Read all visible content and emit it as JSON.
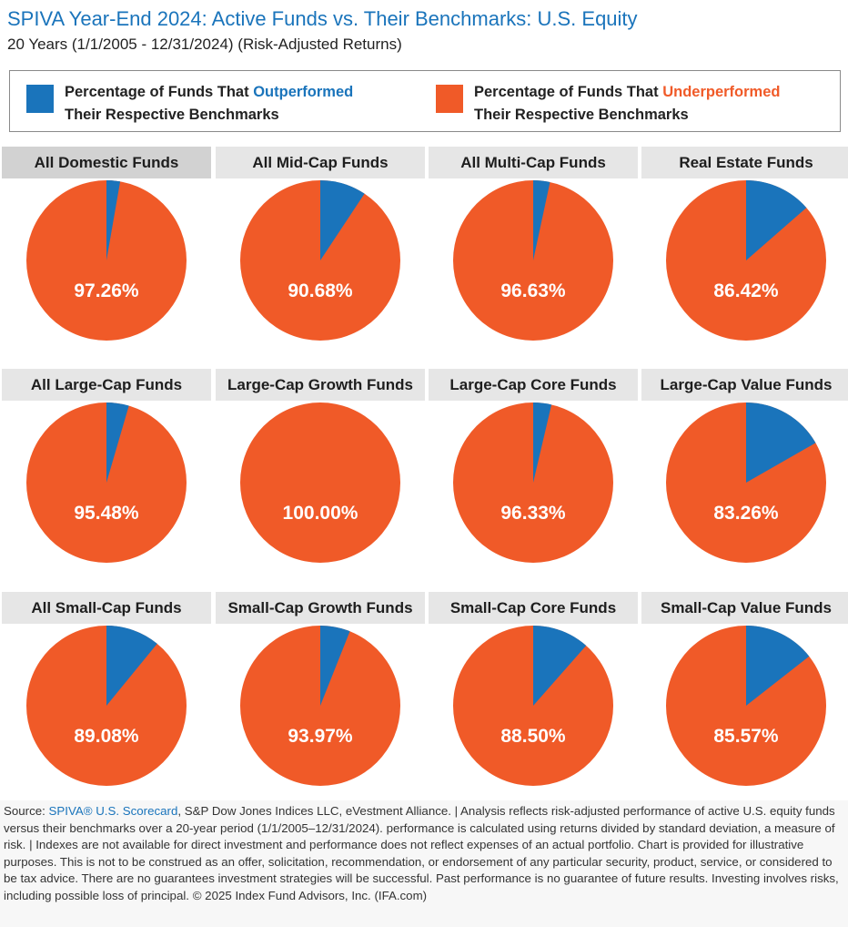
{
  "header": {
    "title": "SPIVA Year-End 2024: Active Funds vs. Their Benchmarks: U.S. Equity",
    "subtitle": "20 Years (1/1/2005 - 12/31/2024) (Risk-Adjusted Returns)"
  },
  "legend": {
    "outperformed": {
      "prefix": "Percentage of Funds That ",
      "highlight": "Outperformed",
      "line2": "Their Respective Benchmarks",
      "color": "#1a74bb"
    },
    "underperformed": {
      "prefix": "Percentage of Funds That ",
      "highlight": "Underperformed",
      "line2": "Their Respective Benchmarks",
      "color": "#f05a28"
    }
  },
  "chart_data": {
    "type": "pie",
    "series_names": [
      "Percentage of Funds That Outperformed Their Respective Benchmarks",
      "Percentage of Funds That Underperformed Their Respective Benchmarks"
    ],
    "colors": [
      "#1a74bb",
      "#f05a28"
    ],
    "panels": [
      {
        "title": "All Domestic Funds",
        "underperformed": 97.26,
        "label": "97.26%"
      },
      {
        "title": "All Mid-Cap Funds",
        "underperformed": 90.68,
        "label": "90.68%"
      },
      {
        "title": "All Multi-Cap Funds",
        "underperformed": 96.63,
        "label": "96.63%"
      },
      {
        "title": "Real Estate Funds",
        "underperformed": 86.42,
        "label": "86.42%"
      },
      {
        "title": "All Large-Cap Funds",
        "underperformed": 95.48,
        "label": "95.48%"
      },
      {
        "title": "Large-Cap Growth Funds",
        "underperformed": 100.0,
        "label": "100.00%"
      },
      {
        "title": "Large-Cap Core Funds",
        "underperformed": 96.33,
        "label": "96.33%"
      },
      {
        "title": "Large-Cap Value Funds",
        "underperformed": 83.26,
        "label": "83.26%"
      },
      {
        "title": "All Small-Cap Funds",
        "underperformed": 89.08,
        "label": "89.08%"
      },
      {
        "title": "Small-Cap Growth Funds",
        "underperformed": 93.97,
        "label": "93.97%"
      },
      {
        "title": "Small-Cap Core Funds",
        "underperformed": 88.5,
        "label": "88.50%"
      },
      {
        "title": "Small-Cap Value Funds",
        "underperformed": 85.57,
        "label": "85.57%"
      }
    ]
  },
  "footer": {
    "source_prefix": "Source: ",
    "source_link": "SPIVA® U.S. Scorecard",
    "text": ", S&P Dow Jones Indices LLC, eVestment Alliance. | Analysis reflects risk-adjusted performance of active U.S. equity funds versus their benchmarks over a 20-year period (1/1/2005–12/31/2024). performance is calculated using returns divided by standard deviation, a measure of risk. | Indexes are not available for direct investment and performance does not reflect expenses of an actual portfolio. Chart is provided for illustrative purposes. This is not to be construed as an offer, solicitation, recommendation, or endorsement of any particular security, product, service, or considered to be tax advice. There are no guarantees investment strategies will be successful. Past performance is no guarantee of future results. Investing involves risks, including possible loss of principal. © 2025 Index Fund Advisors, Inc. (IFA.com)"
  }
}
